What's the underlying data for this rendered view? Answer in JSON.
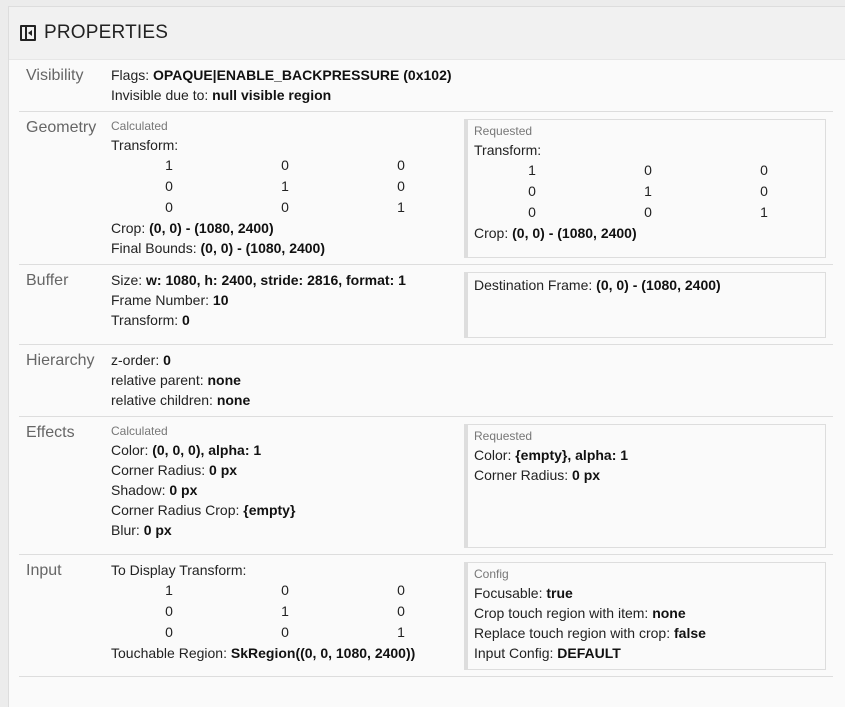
{
  "header": {
    "title": "PROPERTIES",
    "icon": "sidebar-collapse-icon"
  },
  "sections": [
    {
      "name": "Visibility",
      "left": {
        "lines": [
          {
            "label": "Flags: ",
            "value": "OPAQUE|ENABLE_BACKPRESSURE (0x102)"
          },
          {
            "label": "Invisible due to: ",
            "value": "null visible region"
          }
        ]
      }
    },
    {
      "name": "Geometry",
      "left": {
        "subtitle": "Calculated",
        "lines": [
          {
            "label": "Transform:",
            "matrix": [
              [
                "1",
                "0",
                "0"
              ],
              [
                "0",
                "1",
                "0"
              ],
              [
                "0",
                "0",
                "1"
              ]
            ]
          },
          {
            "label": "Crop: ",
            "value": "(0, 0) - (1080, 2400)"
          },
          {
            "label": "Final Bounds: ",
            "value": "(0, 0) - (1080, 2400)"
          }
        ]
      },
      "right": {
        "subtitle": "Requested",
        "lines": [
          {
            "label": "Transform:",
            "matrix": [
              [
                "1",
                "0",
                "0"
              ],
              [
                "0",
                "1",
                "0"
              ],
              [
                "0",
                "0",
                "1"
              ]
            ]
          },
          {
            "label": "Crop: ",
            "value": "(0, 0) - (1080, 2400)"
          }
        ]
      }
    },
    {
      "name": "Buffer",
      "left": {
        "lines": [
          {
            "label": "Size: ",
            "value": "w: 1080, h: 2400, stride: 2816, format: 1"
          },
          {
            "label": "Frame Number: ",
            "value": "10"
          },
          {
            "label": "Transform: ",
            "value": "0"
          }
        ]
      },
      "right": {
        "lines": [
          {
            "label": "Destination Frame: ",
            "value": "(0, 0) - (1080, 2400)"
          }
        ],
        "minLines": 3
      }
    },
    {
      "name": "Hierarchy",
      "left": {
        "lines": [
          {
            "label": "z-order: ",
            "value": "0"
          },
          {
            "label": "relative parent: ",
            "value": "none"
          },
          {
            "label": "relative children: ",
            "value": "none"
          }
        ]
      }
    },
    {
      "name": "Effects",
      "left": {
        "subtitle": "Calculated",
        "lines": [
          {
            "label": "Color: ",
            "value": "(0, 0, 0), alpha: 1"
          },
          {
            "label": "Corner Radius: ",
            "value": "0 px"
          },
          {
            "label": "Shadow: ",
            "value": "0 px"
          },
          {
            "label": "Corner Radius Crop: ",
            "value": "{empty}"
          },
          {
            "label": "Blur: ",
            "value": "0 px"
          }
        ]
      },
      "right": {
        "subtitle": "Requested",
        "lines": [
          {
            "label": "Color: ",
            "value": "{empty}, alpha: 1"
          },
          {
            "label": "Corner Radius: ",
            "value": "0 px"
          }
        ],
        "minLines": 5
      }
    },
    {
      "name": "Input",
      "left": {
        "lines": [
          {
            "label": "To Display Transform:",
            "matrix": [
              [
                "1",
                "0",
                "0"
              ],
              [
                "0",
                "1",
                "0"
              ],
              [
                "0",
                "0",
                "1"
              ]
            ]
          },
          {
            "label": "Touchable Region: ",
            "value": "SkRegion((0, 0, 1080, 2400))"
          }
        ]
      },
      "right": {
        "subtitle": "Config",
        "lines": [
          {
            "label": "Focusable: ",
            "value": "true"
          },
          {
            "label": "Crop touch region with item: ",
            "value": "none"
          },
          {
            "label": "Replace touch region with crop: ",
            "value": "false"
          },
          {
            "label": "Input Config: ",
            "value": "DEFAULT"
          }
        ]
      }
    }
  ]
}
